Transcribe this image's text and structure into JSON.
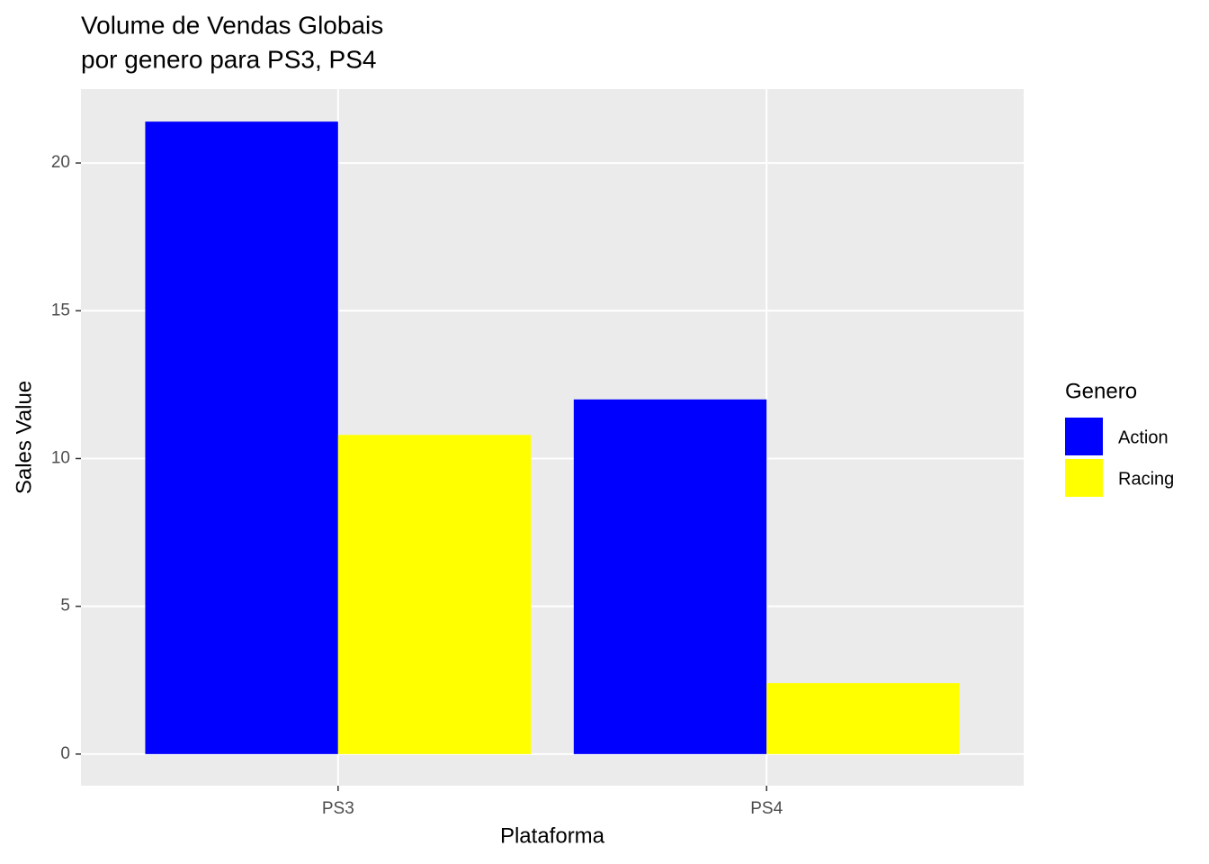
{
  "chart_data": {
    "type": "bar",
    "title": [
      "Volume de Vendas Globais",
      "por genero para PS3, PS4"
    ],
    "x_label": "Plataforma",
    "y_label": "Sales Value",
    "categories": [
      "PS3",
      "PS4"
    ],
    "series": [
      {
        "name": "Action",
        "color": "#0000ff",
        "values": [
          21.4,
          12.0
        ]
      },
      {
        "name": "Racing",
        "color": "#ffff00",
        "values": [
          10.8,
          2.4
        ]
      }
    ],
    "legend_title": "Genero",
    "ylim": [
      -1.07,
      22.5
    ],
    "yticks": [
      0,
      5,
      10,
      15,
      20
    ],
    "grid": true
  }
}
